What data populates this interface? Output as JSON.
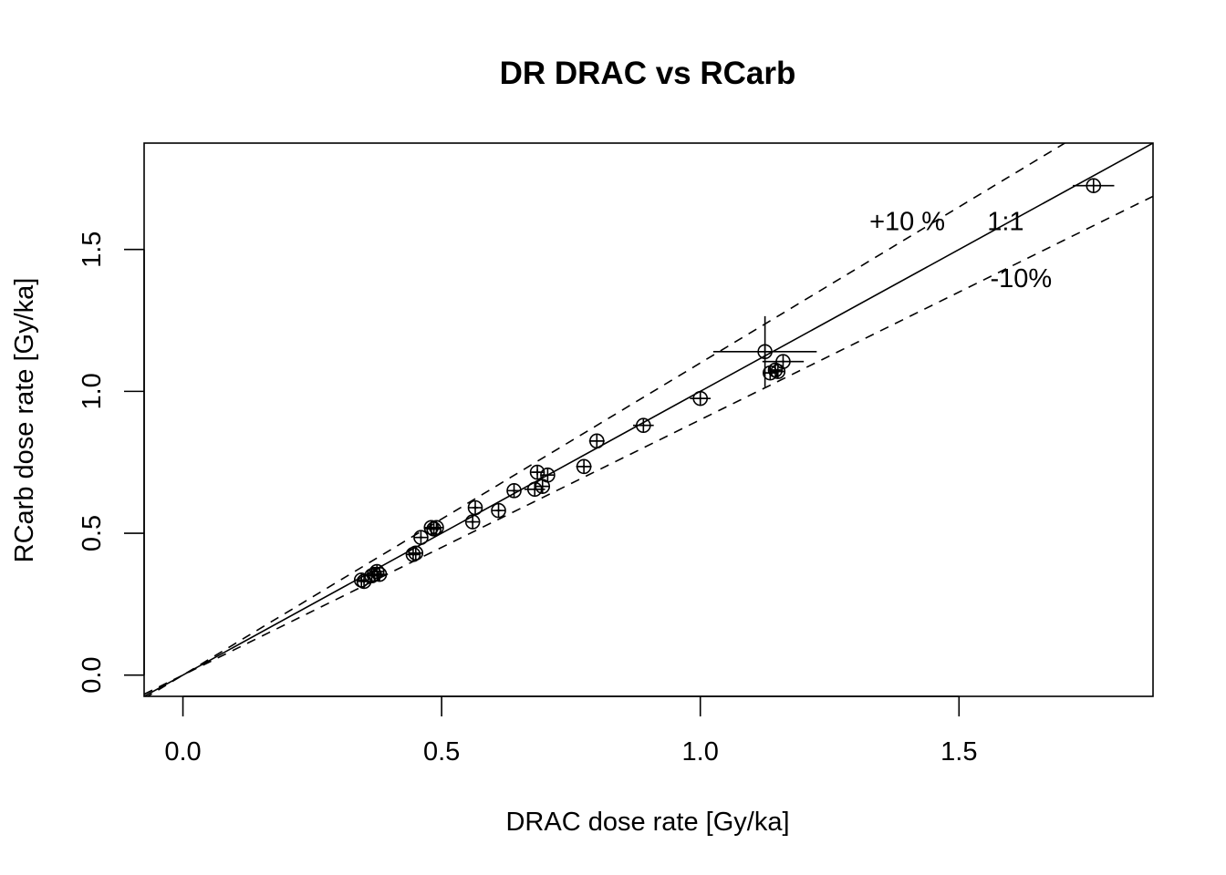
{
  "chart_data": {
    "type": "scatter",
    "title": "DR DRAC vs RCarb",
    "xlabel": "DRAC dose rate [Gy/ka]",
    "ylabel": "RCarb dose rate [Gy/ka]",
    "xlim": [
      -0.075,
      1.875
    ],
    "ylim": [
      -0.075,
      1.875
    ],
    "x_ticks": [
      0.0,
      0.5,
      1.0,
      1.5
    ],
    "y_ticks": [
      0.0,
      0.5,
      1.0,
      1.5
    ],
    "x_tick_labels": [
      "0.0",
      "0.5",
      "1.0",
      "1.5"
    ],
    "y_tick_labels": [
      "0.0",
      "0.5",
      "1.0",
      "1.5"
    ],
    "reference_lines": [
      {
        "name": "1:1",
        "slope": 1.0,
        "style": "solid",
        "label": "1:1",
        "label_at": [
          1.59,
          1.6
        ]
      },
      {
        "name": "+10 %",
        "slope": 1.1,
        "style": "dashed",
        "label": "+10 %",
        "label_at": [
          1.4,
          1.6
        ]
      },
      {
        "name": "-10%",
        "slope": 0.9,
        "style": "dashed",
        "label": "-10%",
        "label_at": [
          1.62,
          1.4
        ]
      }
    ],
    "points": [
      {
        "x": 0.345,
        "y": 0.335,
        "xerr": 0.005,
        "yerr": 0.005
      },
      {
        "x": 0.35,
        "y": 0.33,
        "xerr": 0.005,
        "yerr": 0.005
      },
      {
        "x": 0.365,
        "y": 0.35,
        "xerr": 0.005,
        "yerr": 0.005
      },
      {
        "x": 0.37,
        "y": 0.355,
        "xerr": 0.005,
        "yerr": 0.005
      },
      {
        "x": 0.375,
        "y": 0.365,
        "xerr": 0.005,
        "yerr": 0.005
      },
      {
        "x": 0.38,
        "y": 0.355,
        "xerr": 0.005,
        "yerr": 0.005
      },
      {
        "x": 0.445,
        "y": 0.425,
        "xerr": 0.01,
        "yerr": 0.005
      },
      {
        "x": 0.45,
        "y": 0.43,
        "xerr": 0.01,
        "yerr": 0.005
      },
      {
        "x": 0.46,
        "y": 0.485,
        "xerr": 0.005,
        "yerr": 0.005
      },
      {
        "x": 0.48,
        "y": 0.52,
        "xerr": 0.005,
        "yerr": 0.005
      },
      {
        "x": 0.485,
        "y": 0.515,
        "xerr": 0.005,
        "yerr": 0.005
      },
      {
        "x": 0.49,
        "y": 0.52,
        "xerr": 0.005,
        "yerr": 0.005
      },
      {
        "x": 0.565,
        "y": 0.59,
        "xerr": 0.005,
        "yerr": 0.005
      },
      {
        "x": 0.56,
        "y": 0.54,
        "xerr": 0.005,
        "yerr": 0.005
      },
      {
        "x": 0.61,
        "y": 0.58,
        "xerr": 0.005,
        "yerr": 0.005
      },
      {
        "x": 0.64,
        "y": 0.65,
        "xerr": 0.005,
        "yerr": 0.005
      },
      {
        "x": 0.68,
        "y": 0.655,
        "xerr": 0.02,
        "yerr": 0.005
      },
      {
        "x": 0.685,
        "y": 0.715,
        "xerr": 0.01,
        "yerr": 0.01
      },
      {
        "x": 0.695,
        "y": 0.665,
        "xerr": 0.01,
        "yerr": 0.005
      },
      {
        "x": 0.705,
        "y": 0.705,
        "xerr": 0.01,
        "yerr": 0.005
      },
      {
        "x": 0.775,
        "y": 0.735,
        "xerr": 0.015,
        "yerr": 0.005
      },
      {
        "x": 0.8,
        "y": 0.825,
        "xerr": 0.015,
        "yerr": 0.005
      },
      {
        "x": 0.89,
        "y": 0.88,
        "xerr": 0.02,
        "yerr": 0.005
      },
      {
        "x": 1.0,
        "y": 0.975,
        "xerr": 0.02,
        "yerr": 0.01
      },
      {
        "x": 1.125,
        "y": 1.14,
        "xerr": 0.1,
        "yerr": 0.125
      },
      {
        "x": 1.135,
        "y": 1.065,
        "xerr": 0.01,
        "yerr": 0.005
      },
      {
        "x": 1.145,
        "y": 1.075,
        "xerr": 0.01,
        "yerr": 0.005
      },
      {
        "x": 1.15,
        "y": 1.07,
        "xerr": 0.01,
        "yerr": 0.005
      },
      {
        "x": 1.16,
        "y": 1.105,
        "xerr": 0.04,
        "yerr": 0.005
      },
      {
        "x": 1.76,
        "y": 1.725,
        "xerr": 0.04,
        "yerr": 0.005
      }
    ]
  }
}
